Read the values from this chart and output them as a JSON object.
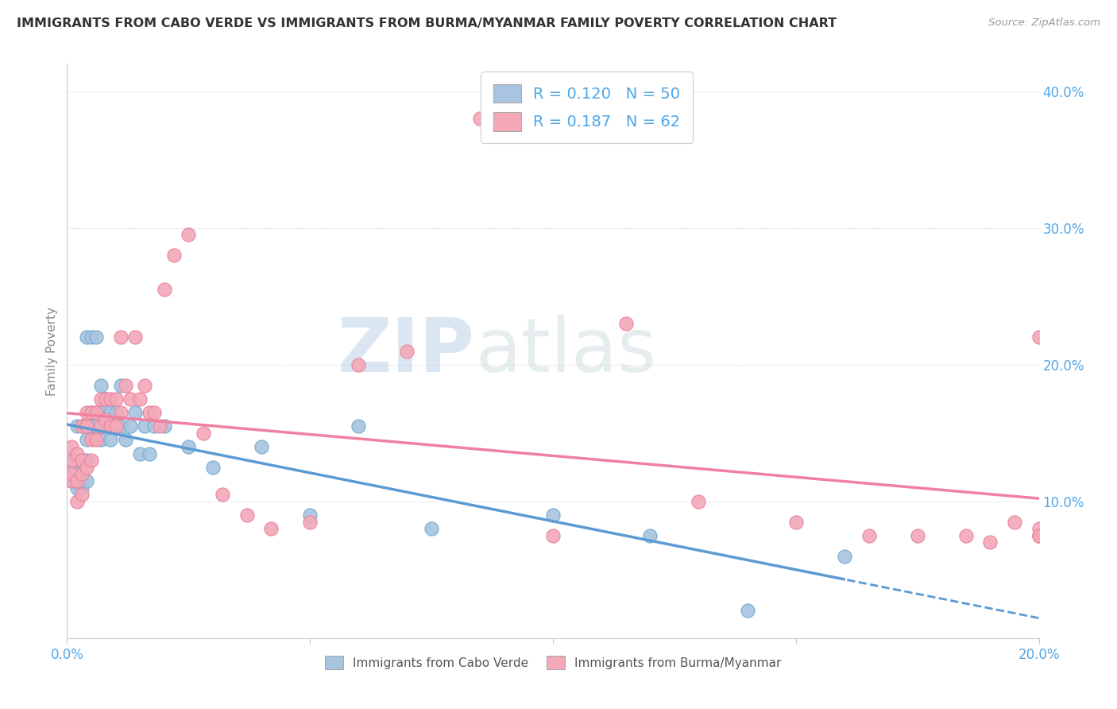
{
  "title": "IMMIGRANTS FROM CABO VERDE VS IMMIGRANTS FROM BURMA/MYANMAR FAMILY POVERTY CORRELATION CHART",
  "source": "Source: ZipAtlas.com",
  "ylabel": "Family Poverty",
  "legend_label1": "Immigrants from Cabo Verde",
  "legend_label2": "Immigrants from Burma/Myanmar",
  "R1": 0.12,
  "N1": 50,
  "R2": 0.187,
  "N2": 62,
  "color_cabo": "#a8c4e0",
  "color_burma": "#f4a8b8",
  "color_line_cabo": "#5b9bd5",
  "color_line_burma": "#f080a0",
  "color_text_blue": "#4da6e8",
  "xlim": [
    0.0,
    0.2
  ],
  "ylim": [
    0.0,
    0.42
  ],
  "yticks": [
    0.1,
    0.2,
    0.3,
    0.4
  ],
  "ytick_labels": [
    "10.0%",
    "20.0%",
    "30.0%",
    "40.0%"
  ],
  "cabo_x": [
    0.001,
    0.001,
    0.001,
    0.002,
    0.002,
    0.002,
    0.002,
    0.003,
    0.003,
    0.003,
    0.003,
    0.004,
    0.004,
    0.004,
    0.004,
    0.005,
    0.005,
    0.005,
    0.006,
    0.006,
    0.006,
    0.007,
    0.007,
    0.007,
    0.008,
    0.008,
    0.009,
    0.009,
    0.01,
    0.01,
    0.011,
    0.011,
    0.012,
    0.013,
    0.014,
    0.015,
    0.016,
    0.017,
    0.018,
    0.02,
    0.025,
    0.03,
    0.04,
    0.05,
    0.06,
    0.075,
    0.1,
    0.12,
    0.14,
    0.16
  ],
  "cabo_y": [
    0.115,
    0.125,
    0.13,
    0.11,
    0.115,
    0.12,
    0.155,
    0.11,
    0.115,
    0.13,
    0.155,
    0.115,
    0.13,
    0.145,
    0.22,
    0.155,
    0.165,
    0.22,
    0.155,
    0.165,
    0.22,
    0.145,
    0.165,
    0.185,
    0.155,
    0.175,
    0.145,
    0.165,
    0.155,
    0.165,
    0.155,
    0.185,
    0.145,
    0.155,
    0.165,
    0.135,
    0.155,
    0.135,
    0.155,
    0.155,
    0.14,
    0.125,
    0.14,
    0.09,
    0.155,
    0.08,
    0.09,
    0.075,
    0.02,
    0.06
  ],
  "burma_x": [
    0.001,
    0.001,
    0.001,
    0.001,
    0.002,
    0.002,
    0.002,
    0.003,
    0.003,
    0.003,
    0.003,
    0.004,
    0.004,
    0.004,
    0.005,
    0.005,
    0.005,
    0.006,
    0.006,
    0.007,
    0.007,
    0.008,
    0.008,
    0.009,
    0.009,
    0.01,
    0.01,
    0.011,
    0.011,
    0.012,
    0.013,
    0.014,
    0.015,
    0.016,
    0.017,
    0.018,
    0.019,
    0.02,
    0.022,
    0.025,
    0.028,
    0.032,
    0.037,
    0.042,
    0.05,
    0.06,
    0.07,
    0.085,
    0.1,
    0.115,
    0.13,
    0.15,
    0.165,
    0.175,
    0.185,
    0.19,
    0.195,
    0.2,
    0.2,
    0.2,
    0.2,
    0.2
  ],
  "burma_y": [
    0.115,
    0.12,
    0.13,
    0.14,
    0.1,
    0.115,
    0.135,
    0.105,
    0.12,
    0.13,
    0.155,
    0.125,
    0.155,
    0.165,
    0.13,
    0.145,
    0.165,
    0.145,
    0.165,
    0.155,
    0.175,
    0.16,
    0.175,
    0.155,
    0.175,
    0.155,
    0.175,
    0.165,
    0.22,
    0.185,
    0.175,
    0.22,
    0.175,
    0.185,
    0.165,
    0.165,
    0.155,
    0.255,
    0.28,
    0.295,
    0.15,
    0.105,
    0.09,
    0.08,
    0.085,
    0.2,
    0.21,
    0.38,
    0.075,
    0.23,
    0.1,
    0.085,
    0.075,
    0.075,
    0.075,
    0.07,
    0.085,
    0.075,
    0.075,
    0.08,
    0.22,
    0.075
  ],
  "watermark_zip": "ZIP",
  "watermark_atlas": "atlas",
  "background_color": "#ffffff",
  "grid_color": "#e8e8e8"
}
